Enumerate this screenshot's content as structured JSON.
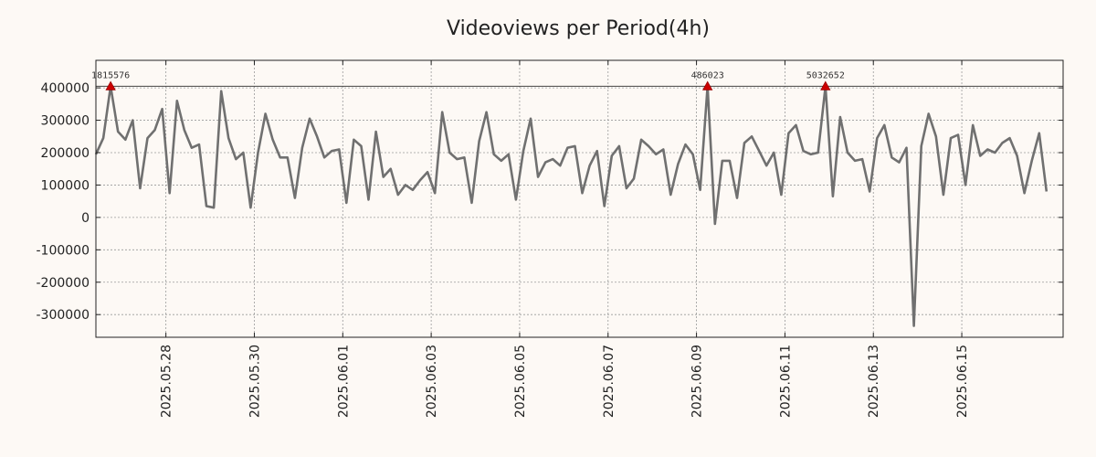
{
  "chart_data": {
    "type": "line",
    "title": "Videoviews per Period(4h)",
    "xlabel": "",
    "ylabel": "",
    "grid": true,
    "x_range": [
      "2025-05-26T10:00",
      "2025-06-17T07:00"
    ],
    "ylim": [
      -370000,
      485000
    ],
    "yticks": [
      400000,
      300000,
      200000,
      100000,
      0,
      -100000,
      -200000,
      -300000
    ],
    "ytick_labels": [
      "400000",
      "300000",
      "200000",
      "100000",
      "0",
      "-100000",
      "-200000",
      "-300000"
    ],
    "xticks": [
      "2025-05-28",
      "2025-05-30",
      "2025-06-01",
      "2025-06-03",
      "2025-06-05",
      "2025-06-07",
      "2025-06-09",
      "2025-06-11",
      "2025-06-13",
      "2025-06-15"
    ],
    "xtick_labels": [
      "2025.05.28",
      "2025.05.30",
      "2025.06.01",
      "2025.06.03",
      "2025.06.05",
      "2025.06.07",
      "2025.06.09",
      "2025.06.11",
      "2025.06.13",
      "2025.06.15"
    ],
    "reference_line": 405000,
    "line_color": "#707070",
    "marker_color": "#cc0000",
    "series": [
      {
        "points": [
          [
            "2025-05-26T10:00",
            195000
          ],
          [
            "2025-05-26T14:00",
            245000
          ],
          [
            "2025-05-26T18:00",
            405000
          ],
          [
            "2025-05-26T22:00",
            265000
          ],
          [
            "2025-05-27T02:00",
            240000
          ],
          [
            "2025-05-27T06:00",
            300000
          ],
          [
            "2025-05-27T10:00",
            90000
          ],
          [
            "2025-05-27T14:00",
            245000
          ],
          [
            "2025-05-27T18:00",
            270000
          ],
          [
            "2025-05-27T22:00",
            335000
          ],
          [
            "2025-05-28T02:00",
            75000
          ],
          [
            "2025-05-28T06:00",
            360000
          ],
          [
            "2025-05-28T10:00",
            270000
          ],
          [
            "2025-05-28T14:00",
            215000
          ],
          [
            "2025-05-28T18:00",
            225000
          ],
          [
            "2025-05-28T22:00",
            35000
          ],
          [
            "2025-05-29T02:00",
            30000
          ],
          [
            "2025-05-29T06:00",
            390000
          ],
          [
            "2025-05-29T10:00",
            245000
          ],
          [
            "2025-05-29T14:00",
            180000
          ],
          [
            "2025-05-29T18:00",
            200000
          ],
          [
            "2025-05-29T22:00",
            30000
          ],
          [
            "2025-05-30T02:00",
            200000
          ],
          [
            "2025-05-30T06:00",
            320000
          ],
          [
            "2025-05-30T10:00",
            240000
          ],
          [
            "2025-05-30T14:00",
            185000
          ],
          [
            "2025-05-30T18:00",
            185000
          ],
          [
            "2025-05-30T22:00",
            60000
          ],
          [
            "2025-05-31T02:00",
            215000
          ],
          [
            "2025-05-31T06:00",
            305000
          ],
          [
            "2025-05-31T10:00",
            250000
          ],
          [
            "2025-05-31T14:00",
            185000
          ],
          [
            "2025-05-31T18:00",
            205000
          ],
          [
            "2025-05-31T22:00",
            210000
          ],
          [
            "2025-06-01T02:00",
            45000
          ],
          [
            "2025-06-01T06:00",
            240000
          ],
          [
            "2025-06-01T10:00",
            220000
          ],
          [
            "2025-06-01T14:00",
            55000
          ],
          [
            "2025-06-01T18:00",
            265000
          ],
          [
            "2025-06-01T22:00",
            125000
          ],
          [
            "2025-06-02T02:00",
            150000
          ],
          [
            "2025-06-02T06:00",
            70000
          ],
          [
            "2025-06-02T10:00",
            100000
          ],
          [
            "2025-06-02T14:00",
            85000
          ],
          [
            "2025-06-02T18:00",
            115000
          ],
          [
            "2025-06-02T22:00",
            140000
          ],
          [
            "2025-06-03T02:00",
            75000
          ],
          [
            "2025-06-03T06:00",
            325000
          ],
          [
            "2025-06-03T10:00",
            200000
          ],
          [
            "2025-06-03T14:00",
            180000
          ],
          [
            "2025-06-03T18:00",
            185000
          ],
          [
            "2025-06-03T22:00",
            45000
          ],
          [
            "2025-06-04T02:00",
            235000
          ],
          [
            "2025-06-04T06:00",
            325000
          ],
          [
            "2025-06-04T10:00",
            195000
          ],
          [
            "2025-06-04T14:00",
            175000
          ],
          [
            "2025-06-04T18:00",
            195000
          ],
          [
            "2025-06-04T22:00",
            55000
          ],
          [
            "2025-06-05T02:00",
            205000
          ],
          [
            "2025-06-05T06:00",
            305000
          ],
          [
            "2025-06-05T10:00",
            125000
          ],
          [
            "2025-06-05T14:00",
            170000
          ],
          [
            "2025-06-05T18:00",
            180000
          ],
          [
            "2025-06-05T22:00",
            160000
          ],
          [
            "2025-06-06T02:00",
            215000
          ],
          [
            "2025-06-06T06:00",
            220000
          ],
          [
            "2025-06-06T10:00",
            75000
          ],
          [
            "2025-06-06T14:00",
            160000
          ],
          [
            "2025-06-06T18:00",
            205000
          ],
          [
            "2025-06-06T22:00",
            35000
          ],
          [
            "2025-06-07T02:00",
            190000
          ],
          [
            "2025-06-07T06:00",
            220000
          ],
          [
            "2025-06-07T10:00",
            90000
          ],
          [
            "2025-06-07T14:00",
            120000
          ],
          [
            "2025-06-07T18:00",
            240000
          ],
          [
            "2025-06-07T22:00",
            220000
          ],
          [
            "2025-06-08T02:00",
            195000
          ],
          [
            "2025-06-08T06:00",
            210000
          ],
          [
            "2025-06-08T10:00",
            70000
          ],
          [
            "2025-06-08T14:00",
            165000
          ],
          [
            "2025-06-08T18:00",
            225000
          ],
          [
            "2025-06-08T22:00",
            195000
          ],
          [
            "2025-06-09T02:00",
            85000
          ],
          [
            "2025-06-09T06:00",
            405000
          ],
          [
            "2025-06-09T10:00",
            -20000
          ],
          [
            "2025-06-09T14:00",
            175000
          ],
          [
            "2025-06-09T18:00",
            175000
          ],
          [
            "2025-06-09T22:00",
            60000
          ],
          [
            "2025-06-10T02:00",
            230000
          ],
          [
            "2025-06-10T06:00",
            250000
          ],
          [
            "2025-06-10T10:00",
            205000
          ],
          [
            "2025-06-10T14:00",
            160000
          ],
          [
            "2025-06-10T18:00",
            200000
          ],
          [
            "2025-06-10T22:00",
            70000
          ],
          [
            "2025-06-11T02:00",
            260000
          ],
          [
            "2025-06-11T06:00",
            285000
          ],
          [
            "2025-06-11T10:00",
            205000
          ],
          [
            "2025-06-11T14:00",
            195000
          ],
          [
            "2025-06-11T18:00",
            200000
          ],
          [
            "2025-06-11T22:00",
            405000
          ],
          [
            "2025-06-12T02:00",
            65000
          ],
          [
            "2025-06-12T06:00",
            310000
          ],
          [
            "2025-06-12T10:00",
            200000
          ],
          [
            "2025-06-12T14:00",
            175000
          ],
          [
            "2025-06-12T18:00",
            180000
          ],
          [
            "2025-06-12T22:00",
            80000
          ],
          [
            "2025-06-13T02:00",
            245000
          ],
          [
            "2025-06-13T06:00",
            285000
          ],
          [
            "2025-06-13T10:00",
            185000
          ],
          [
            "2025-06-13T14:00",
            170000
          ],
          [
            "2025-06-13T18:00",
            215000
          ],
          [
            "2025-06-13T22:00",
            -335000
          ],
          [
            "2025-06-14T02:00",
            220000
          ],
          [
            "2025-06-14T06:00",
            320000
          ],
          [
            "2025-06-14T10:00",
            250000
          ],
          [
            "2025-06-14T14:00",
            70000
          ],
          [
            "2025-06-14T18:00",
            245000
          ],
          [
            "2025-06-14T22:00",
            255000
          ],
          [
            "2025-06-15T02:00",
            100000
          ],
          [
            "2025-06-15T06:00",
            285000
          ],
          [
            "2025-06-15T10:00",
            190000
          ],
          [
            "2025-06-15T14:00",
            210000
          ],
          [
            "2025-06-15T18:00",
            200000
          ],
          [
            "2025-06-15T22:00",
            230000
          ],
          [
            "2025-06-16T02:00",
            245000
          ],
          [
            "2025-06-16T06:00",
            190000
          ],
          [
            "2025-06-16T10:00",
            75000
          ],
          [
            "2025-06-16T14:00",
            175000
          ],
          [
            "2025-06-16T18:00",
            260000
          ],
          [
            "2025-06-16T22:00",
            80000
          ]
        ]
      }
    ],
    "annotations": [
      {
        "x": "2025-05-26T18:00",
        "y": 405000,
        "text": "1815576"
      },
      {
        "x": "2025-06-09T06:00",
        "y": 405000,
        "text": "486023"
      },
      {
        "x": "2025-06-11T22:00",
        "y": 405000,
        "text": "5032652"
      }
    ]
  }
}
